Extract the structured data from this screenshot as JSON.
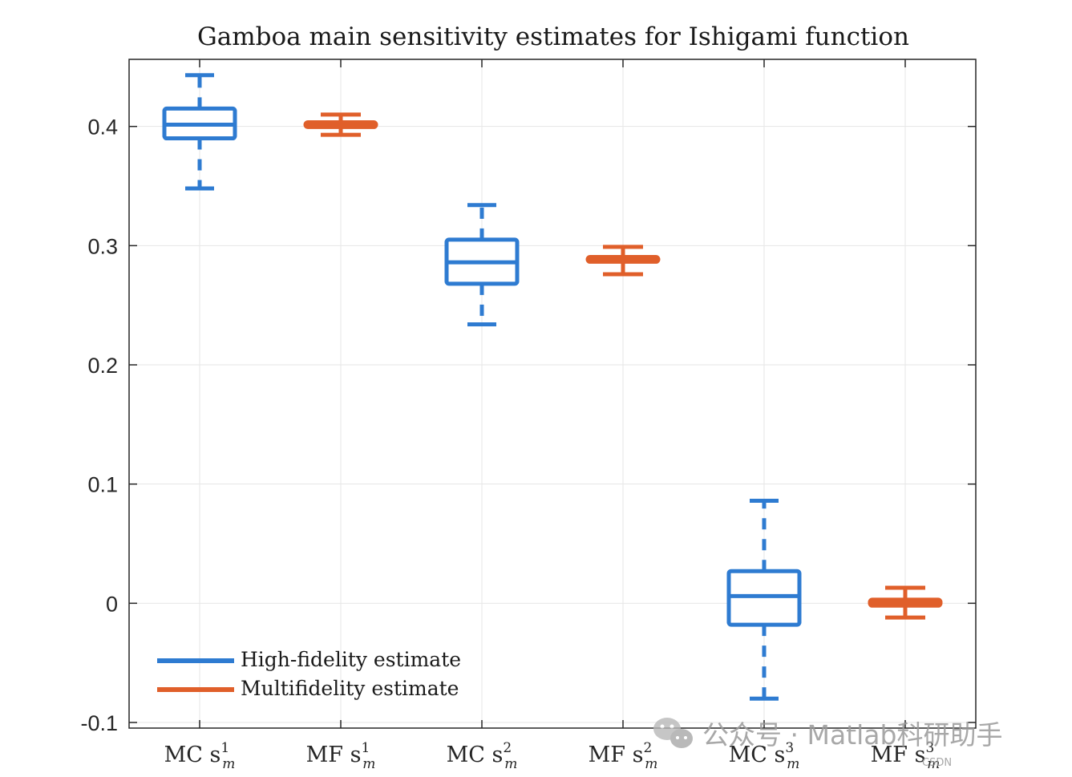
{
  "chart_data": {
    "type": "boxplot",
    "title": "Gamboa main sensitivity estimates for Ishigami function",
    "ylim": [
      -0.1,
      0.45
    ],
    "yticks": [
      "-0.1",
      "0",
      "0.1",
      "0.2",
      "0.3",
      "0.4"
    ],
    "ytick_values": [
      -0.1,
      0,
      0.1,
      0.2,
      0.3,
      0.4
    ],
    "grid": true,
    "legend_position": "bottom-left",
    "colors": {
      "high_fidelity": "#2e7bd1",
      "multifidelity": "#e05f2a"
    },
    "categories": [
      {
        "label": "MC s",
        "sup": "1",
        "sub": "m"
      },
      {
        "label": "MF s",
        "sup": "1",
        "sub": "m"
      },
      {
        "label": "MC s",
        "sup": "2",
        "sub": "m"
      },
      {
        "label": "MF s",
        "sup": "2",
        "sub": "m"
      },
      {
        "label": "MC s",
        "sup": "3",
        "sub": "m"
      },
      {
        "label": "MF s",
        "sup": "3",
        "sub": "m"
      }
    ],
    "series": [
      {
        "name": "High-fidelity estimate",
        "color": "#2e7bd1",
        "boxes": [
          {
            "category": 1,
            "whisker_low": 0.348,
            "q1": 0.39,
            "median": 0.4015,
            "q3": 0.415,
            "whisker_high": 0.443
          },
          {
            "category": 3,
            "whisker_low": 0.234,
            "q1": 0.268,
            "median": 0.286,
            "q3": 0.305,
            "whisker_high": 0.334
          },
          {
            "category": 5,
            "whisker_low": -0.08,
            "q1": -0.018,
            "median": 0.006,
            "q3": 0.027,
            "whisker_high": 0.086
          }
        ]
      },
      {
        "name": "Multifidelity estimate",
        "color": "#e05f2a",
        "boxes": [
          {
            "category": 2,
            "whisker_low": 0.393,
            "q1": 0.3995,
            "median": 0.4015,
            "q3": 0.4035,
            "whisker_high": 0.41
          },
          {
            "category": 4,
            "whisker_low": 0.276,
            "q1": 0.2865,
            "median": 0.2885,
            "q3": 0.2905,
            "whisker_high": 0.299
          },
          {
            "category": 6,
            "whisker_low": -0.012,
            "q1": -0.002,
            "median": 0.0005,
            "q3": 0.003,
            "whisker_high": 0.013
          }
        ]
      }
    ]
  },
  "legend": {
    "high_fidelity_label": "High-fidelity estimate",
    "multifidelity_label": "Multifidelity estimate"
  },
  "watermark": {
    "text": "公众号 · Matlab科研助手",
    "small": "CSDN"
  }
}
